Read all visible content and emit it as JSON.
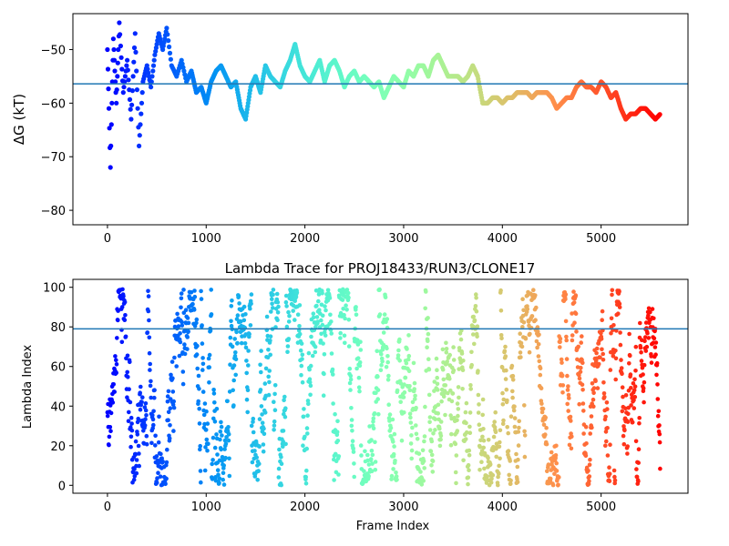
{
  "chart_data": [
    {
      "type": "line",
      "title": "",
      "xlabel": "",
      "ylabel": "ΔG (kT)",
      "xlim": [
        -350,
        5880
      ],
      "ylim": [
        -82.7,
        -43.3
      ],
      "xticks": [
        0,
        1000,
        2000,
        3000,
        4000,
        5000
      ],
      "yticks": [
        -80,
        -70,
        -60,
        -50
      ],
      "xtick_labels": [
        "0",
        "1000",
        "2000",
        "3000",
        "4000",
        "5000"
      ],
      "ytick_labels": [
        "−80",
        "−70",
        "−60",
        "−50"
      ],
      "colormap": "rainbow (reversed over frame index)",
      "hline": -56.4,
      "hline_color": "#1f77b4",
      "series": [
        {
          "x": [
            0,
            30,
            60,
            90,
            120,
            160,
            200,
            240,
            280,
            320,
            360,
            400,
            440,
            480,
            520,
            560,
            600,
            650,
            700,
            750,
            800,
            850,
            900,
            950,
            1000,
            1050,
            1100,
            1150,
            1200,
            1250,
            1300,
            1350,
            1400,
            1450,
            1500,
            1550,
            1600,
            1650,
            1700,
            1750,
            1800,
            1850,
            1900,
            1950,
            2000,
            2050,
            2100,
            2150,
            2200,
            2250,
            2300,
            2350,
            2400,
            2450,
            2500,
            2550,
            2600,
            2650,
            2700,
            2750,
            2800,
            2850,
            2900,
            2950,
            3000,
            3050,
            3100,
            3150,
            3200,
            3250,
            3300,
            3350,
            3400,
            3450,
            3500,
            3550,
            3600,
            3650,
            3700,
            3750,
            3800,
            3850,
            3900,
            3950,
            4000,
            4050,
            4100,
            4150,
            4200,
            4250,
            4300,
            4350,
            4400,
            4450,
            4500,
            4550,
            4600,
            4650,
            4700,
            4750,
            4800,
            4850,
            4900,
            4950,
            5000,
            5050,
            5100,
            5150,
            5200,
            5250,
            5300,
            5350,
            5400,
            5450,
            5500,
            5550,
            5600
          ],
          "y": [
            -50,
            -72,
            -48,
            -60,
            -45,
            -58,
            -52,
            -63,
            -47,
            -68,
            -56,
            -53,
            -57,
            -51,
            -47,
            -50,
            -46,
            -53,
            -55,
            -52,
            -56,
            -54,
            -58,
            -57,
            -60,
            -56,
            -54,
            -53,
            -55,
            -57,
            -56,
            -61,
            -63,
            -57,
            -55,
            -58,
            -53,
            -55,
            -56,
            -57,
            -54,
            -52,
            -49,
            -53,
            -55,
            -56,
            -54,
            -52,
            -56,
            -53,
            -52,
            -54,
            -57,
            -55,
            -54,
            -56,
            -55,
            -56,
            -57,
            -56,
            -59,
            -57,
            -55,
            -56,
            -57,
            -54,
            -55,
            -53,
            -53,
            -55,
            -52,
            -51,
            -53,
            -55,
            -55,
            -55,
            -56,
            -55,
            -53,
            -55,
            -60,
            -60,
            -59,
            -59,
            -60,
            -59,
            -59,
            -58,
            -58,
            -58,
            -59,
            -58,
            -58,
            -58,
            -59,
            -61,
            -60,
            -59,
            -59,
            -57,
            -56,
            -57,
            -57,
            -58,
            -56,
            -57,
            -59,
            -58,
            -61,
            -63,
            -62,
            -62,
            -61,
            -61,
            -62,
            -63,
            -62
          ]
        }
      ]
    },
    {
      "type": "scatter",
      "title": "Lambda Trace for PROJ18433/RUN3/CLONE17",
      "xlabel": "Frame Index",
      "ylabel": "Lambda Index",
      "xlim": [
        -350,
        5880
      ],
      "ylim": [
        -4,
        104
      ],
      "xticks": [
        0,
        1000,
        2000,
        3000,
        4000,
        5000
      ],
      "yticks": [
        0,
        20,
        40,
        60,
        80,
        100
      ],
      "xtick_labels": [
        "0",
        "1000",
        "2000",
        "3000",
        "4000",
        "5000"
      ],
      "ytick_labels": [
        "0",
        "20",
        "40",
        "60",
        "80",
        "100"
      ],
      "colormap": "rainbow (reversed over frame index)",
      "hline": 79,
      "hline_color": "#1f77b4",
      "frame_range": [
        0,
        5600
      ],
      "lambda_range": [
        0,
        99
      ]
    }
  ]
}
